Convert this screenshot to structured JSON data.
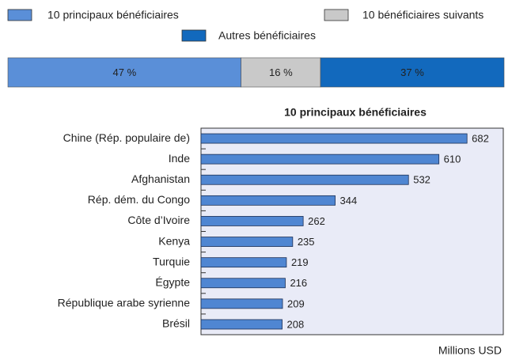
{
  "chart_data": [
    {
      "type": "stacked-bar",
      "series": [
        {
          "name": "10 principaux bénéficiaires",
          "color": "#5a8fd8",
          "values": [
            47
          ],
          "value_labels": [
            "47 %"
          ]
        },
        {
          "name": "10 bénéficiaires suivants",
          "color": "#c9c9c9",
          "values": [
            16
          ],
          "value_labels": [
            "16 %"
          ]
        },
        {
          "name": "Autres bénéficiaires",
          "color": "#1269bd",
          "values": [
            37
          ],
          "value_labels": [
            "37 %"
          ]
        }
      ]
    },
    {
      "type": "bar",
      "orientation": "horizontal",
      "title": "10 principaux bénéficiaires",
      "categories": [
        "Chine (Rép. populaire de)",
        "Inde",
        "Afghanistan",
        "Rép. dém. du Congo",
        "Côte d’Ivoire",
        "Kenya",
        "Turquie",
        "Égypte",
        "République arabe syrienne",
        "Brésil"
      ],
      "values": [
        682,
        610,
        532,
        344,
        262,
        235,
        219,
        216,
        209,
        208
      ],
      "color": "#4f86d2",
      "xlim": [
        0,
        775
      ],
      "xlabel": "Millions USD"
    }
  ]
}
